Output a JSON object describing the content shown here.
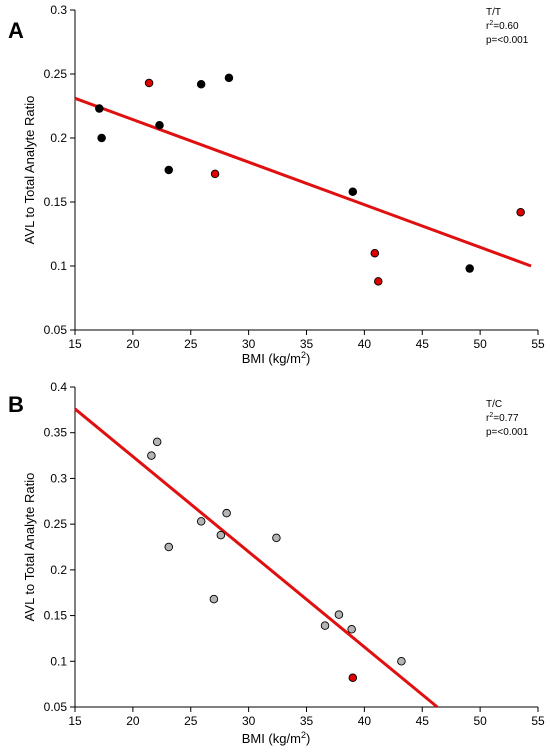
{
  "chart_data": [
    {
      "panel": "A",
      "type": "scatter",
      "xlabel": "BMI (kg/m",
      "xlabel_sup": "2",
      "xlabel_end": ")",
      "ylabel": "AVL to Total Analyte Ratio",
      "xlim": [
        15,
        55
      ],
      "ylim": [
        0.05,
        0.3
      ],
      "x_ticks": [
        "15",
        "20",
        "25",
        "30",
        "35",
        "40",
        "45",
        "50",
        "55"
      ],
      "y_ticks": [
        "0.05",
        "0.1",
        "0.15",
        "0.2",
        "0.25",
        "0.3"
      ],
      "annotation": {
        "line1": "T/T",
        "line2_pre": "r",
        "line2_sup": "2",
        "line2_post": "=0.60",
        "line3": "p=<0.001"
      },
      "grid": false,
      "colors": {
        "black": "#000000",
        "red": "#dd0000",
        "line": "#e01010"
      },
      "points": [
        {
          "x": 17.1,
          "y": 0.223,
          "color": "black"
        },
        {
          "x": 17.3,
          "y": 0.2,
          "color": "black"
        },
        {
          "x": 21.4,
          "y": 0.243,
          "color": "red"
        },
        {
          "x": 22.3,
          "y": 0.21,
          "color": "black"
        },
        {
          "x": 23.1,
          "y": 0.175,
          "color": "black"
        },
        {
          "x": 25.9,
          "y": 0.242,
          "color": "black"
        },
        {
          "x": 27.1,
          "y": 0.172,
          "color": "red"
        },
        {
          "x": 28.3,
          "y": 0.247,
          "color": "black"
        },
        {
          "x": 39.0,
          "y": 0.158,
          "color": "black"
        },
        {
          "x": 40.9,
          "y": 0.11,
          "color": "red"
        },
        {
          "x": 41.2,
          "y": 0.088,
          "color": "red"
        },
        {
          "x": 49.1,
          "y": 0.098,
          "color": "black"
        },
        {
          "x": 53.5,
          "y": 0.142,
          "color": "red"
        }
      ],
      "fit_line": {
        "x": [
          15,
          54.4
        ],
        "y": [
          0.231,
          0.1
        ]
      }
    },
    {
      "panel": "B",
      "type": "scatter",
      "xlabel": "BMI (kg/m",
      "xlabel_sup": "2",
      "xlabel_end": ")",
      "ylabel": "AVL to Total Analyte Ratio",
      "xlim": [
        15,
        55
      ],
      "ylim": [
        0.05,
        0.4
      ],
      "x_ticks": [
        "15",
        "20",
        "25",
        "30",
        "35",
        "40",
        "45",
        "50",
        "55"
      ],
      "y_ticks": [
        "0.05",
        "0.1",
        "0.15",
        "0.2",
        "0.25",
        "0.3",
        "0.35",
        "0.4"
      ],
      "annotation": {
        "line1": "T/C",
        "line2_pre": "r",
        "line2_sup": "2",
        "line2_post": "=0.77",
        "line3": "p=<0.001"
      },
      "grid": false,
      "colors": {
        "gray": "#b4b4b4",
        "red": "#dd0000",
        "line": "#e01010"
      },
      "points": [
        {
          "x": 21.6,
          "y": 0.325,
          "color": "gray"
        },
        {
          "x": 22.1,
          "y": 0.34,
          "color": "gray"
        },
        {
          "x": 23.1,
          "y": 0.225,
          "color": "gray"
        },
        {
          "x": 25.9,
          "y": 0.253,
          "color": "gray"
        },
        {
          "x": 27.0,
          "y": 0.168,
          "color": "gray"
        },
        {
          "x": 27.6,
          "y": 0.238,
          "color": "gray"
        },
        {
          "x": 28.1,
          "y": 0.262,
          "color": "gray"
        },
        {
          "x": 32.4,
          "y": 0.235,
          "color": "gray"
        },
        {
          "x": 36.6,
          "y": 0.139,
          "color": "gray"
        },
        {
          "x": 37.8,
          "y": 0.151,
          "color": "gray"
        },
        {
          "x": 38.9,
          "y": 0.135,
          "color": "gray"
        },
        {
          "x": 39.0,
          "y": 0.082,
          "color": "red"
        },
        {
          "x": 43.2,
          "y": 0.1,
          "color": "gray"
        }
      ],
      "fit_line": {
        "x": [
          15,
          46.3
        ],
        "y": [
          0.376,
          0.05
        ]
      }
    }
  ]
}
